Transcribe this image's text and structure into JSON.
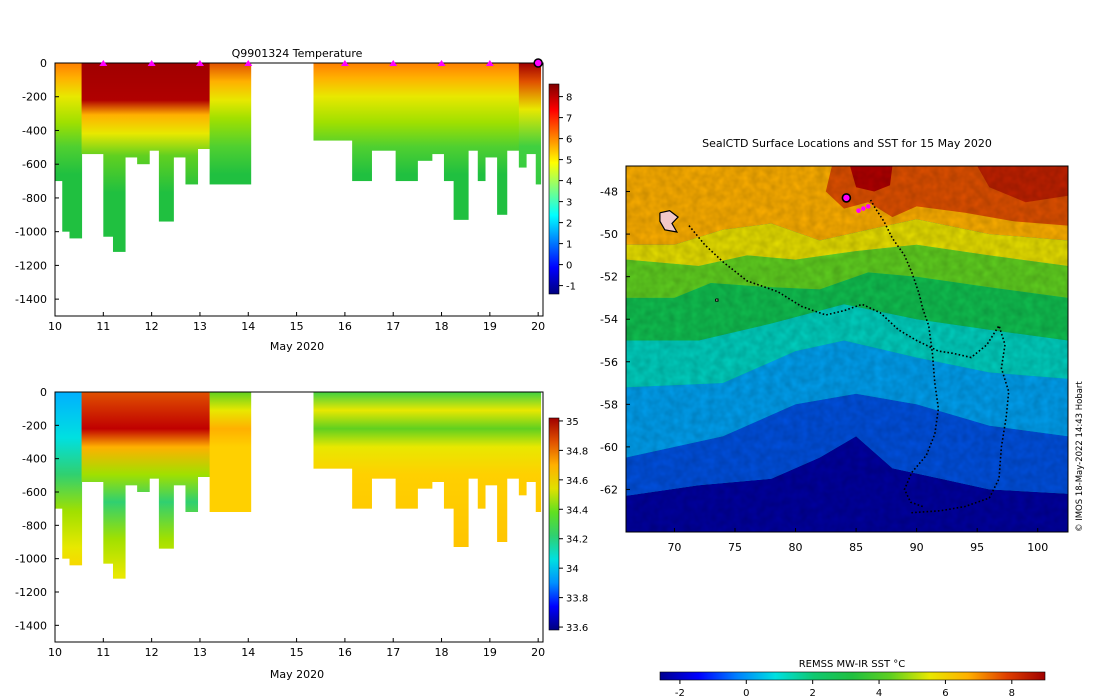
{
  "chart_data": [
    {
      "type": "heatmap",
      "id": "temperature",
      "title": "Q9901324  Temperature",
      "xlabel": "May 2020",
      "ylabel": "",
      "xlim": [
        10,
        20.1
      ],
      "ylim": [
        -1500,
        0
      ],
      "xticks": [
        10,
        11,
        12,
        13,
        14,
        15,
        16,
        17,
        18,
        19,
        20
      ],
      "yticks": [
        0,
        -200,
        -400,
        -600,
        -800,
        -1000,
        -1200,
        -1400
      ],
      "colorbar": {
        "min": -1.4,
        "max": 8.6,
        "ticks": [
          8,
          7,
          6,
          5,
          4,
          3,
          2,
          1,
          0,
          -1
        ]
      },
      "surface_markers": [
        11,
        12,
        13,
        14,
        16,
        17,
        18,
        19
      ],
      "current_marker": 20,
      "profiles": [
        {
          "x0": 10.0,
          "x1": 10.15,
          "max_depth": 700
        },
        {
          "x0": 10.15,
          "x1": 10.3,
          "max_depth": 1000
        },
        {
          "x0": 10.3,
          "x1": 10.55,
          "max_depth": 1040
        },
        {
          "x0": 10.55,
          "x1": 11.0,
          "max_depth": 540
        },
        {
          "x0": 11.0,
          "x1": 11.2,
          "max_depth": 1030
        },
        {
          "x0": 11.2,
          "x1": 11.45,
          "max_depth": 1120
        },
        {
          "x0": 11.45,
          "x1": 11.7,
          "max_depth": 560
        },
        {
          "x0": 11.7,
          "x1": 11.95,
          "max_depth": 600
        },
        {
          "x0": 11.95,
          "x1": 12.15,
          "max_depth": 520
        },
        {
          "x0": 12.15,
          "x1": 12.45,
          "max_depth": 940
        },
        {
          "x0": 12.45,
          "x1": 12.7,
          "max_depth": 560
        },
        {
          "x0": 12.7,
          "x1": 12.95,
          "max_depth": 720
        },
        {
          "x0": 12.95,
          "x1": 13.2,
          "max_depth": 510
        },
        {
          "x0": 13.2,
          "x1": 14.05,
          "max_depth": 720
        },
        {
          "x0": 15.35,
          "x1": 16.15,
          "max_depth": 460
        },
        {
          "x0": 16.15,
          "x1": 16.55,
          "max_depth": 700
        },
        {
          "x0": 16.55,
          "x1": 17.05,
          "max_depth": 520
        },
        {
          "x0": 17.05,
          "x1": 17.5,
          "max_depth": 700
        },
        {
          "x0": 17.5,
          "x1": 17.8,
          "max_depth": 580
        },
        {
          "x0": 17.8,
          "x1": 18.05,
          "max_depth": 540
        },
        {
          "x0": 18.05,
          "x1": 18.25,
          "max_depth": 700
        },
        {
          "x0": 18.25,
          "x1": 18.55,
          "max_depth": 930
        },
        {
          "x0": 18.55,
          "x1": 18.75,
          "max_depth": 520
        },
        {
          "x0": 18.75,
          "x1": 18.9,
          "max_depth": 700
        },
        {
          "x0": 18.9,
          "x1": 19.15,
          "max_depth": 560
        },
        {
          "x0": 19.15,
          "x1": 19.35,
          "max_depth": 900
        },
        {
          "x0": 19.35,
          "x1": 19.6,
          "max_depth": 520
        },
        {
          "x0": 19.6,
          "x1": 19.75,
          "max_depth": 620
        },
        {
          "x0": 19.75,
          "x1": 19.95,
          "max_depth": 540
        },
        {
          "x0": 19.95,
          "x1": 20.05,
          "max_depth": 720
        }
      ]
    },
    {
      "type": "heatmap",
      "id": "salinity",
      "title": "",
      "xlabel": "May 2020",
      "ylabel": "",
      "xlim": [
        10,
        20.1
      ],
      "ylim": [
        -1500,
        0
      ],
      "xticks": [
        10,
        11,
        12,
        13,
        14,
        15,
        16,
        17,
        18,
        19,
        20
      ],
      "yticks": [
        0,
        -200,
        -400,
        -600,
        -800,
        -1000,
        -1200,
        -1400
      ],
      "colorbar": {
        "min": 33.58,
        "max": 35.02,
        "ticks": [
          "35",
          "34.8",
          "34.6",
          "34.4",
          "34.2",
          "34",
          "33.8",
          "33.6"
        ]
      }
    },
    {
      "type": "heatmap",
      "id": "sst-map",
      "title": "SealCTD Surface Locations and SST for 15 May 2020",
      "xlim": [
        66,
        102.5
      ],
      "ylim": [
        -64,
        -46.8
      ],
      "xticks": [
        70,
        75,
        80,
        85,
        90,
        95,
        100
      ],
      "yticks": [
        -48,
        -50,
        -52,
        -54,
        -56,
        -58,
        -60,
        -62
      ],
      "colorbar": {
        "label": "REMSS MW-IR SST °C",
        "min": -2.6,
        "max": 9.0,
        "ticks": [
          -2,
          0,
          2,
          4,
          6,
          8
        ]
      },
      "track": [
        [
          90.5,
          -62.8
        ],
        [
          89.5,
          -62.6
        ],
        [
          89.0,
          -62.0
        ],
        [
          89.6,
          -61.2
        ],
        [
          90.8,
          -60.4
        ],
        [
          91.5,
          -59.4
        ],
        [
          91.8,
          -58.2
        ],
        [
          91.5,
          -57.0
        ],
        [
          91.3,
          -55.6
        ],
        [
          91.0,
          -54.3
        ],
        [
          90.5,
          -53.5
        ],
        [
          90.2,
          -52.8
        ],
        [
          89.6,
          -51.8
        ],
        [
          89.0,
          -51.0
        ],
        [
          88.0,
          -50.2
        ],
        [
          87.3,
          -49.4
        ],
        [
          86.6,
          -48.8
        ],
        [
          86.2,
          -48.4
        ]
      ],
      "track_from_kerguelen": [
        [
          71.2,
          -49.6
        ],
        [
          72.5,
          -50.5
        ],
        [
          74.0,
          -51.3
        ],
        [
          76.0,
          -52.2
        ],
        [
          78.5,
          -52.7
        ],
        [
          80.5,
          -53.4
        ],
        [
          82.5,
          -53.8
        ],
        [
          84.0,
          -53.6
        ],
        [
          85.5,
          -53.3
        ],
        [
          87.0,
          -53.7
        ],
        [
          88.5,
          -54.5
        ],
        [
          90.0,
          -55.0
        ],
        [
          91.8,
          -55.5
        ],
        [
          93.0,
          -55.6
        ],
        [
          94.5,
          -55.8
        ],
        [
          95.8,
          -55.2
        ],
        [
          96.8,
          -54.3
        ],
        [
          97.3,
          -55.2
        ],
        [
          97.0,
          -56.3
        ],
        [
          97.6,
          -57.4
        ],
        [
          97.4,
          -58.6
        ],
        [
          97.0,
          -60.0
        ],
        [
          96.8,
          -61.5
        ],
        [
          96.0,
          -62.4
        ],
        [
          94.0,
          -62.8
        ],
        [
          92.0,
          -63.0
        ],
        [
          89.5,
          -63.1
        ]
      ],
      "surface_locations": [
        [
          85.2,
          -48.9
        ],
        [
          85.6,
          -48.8
        ],
        [
          86.0,
          -48.7
        ]
      ],
      "current_location": [
        84.2,
        -48.3
      ],
      "island_main": [
        [
          68.8,
          -49.0
        ],
        [
          69.6,
          -48.9
        ],
        [
          70.3,
          -49.2
        ],
        [
          69.8,
          -49.5
        ],
        [
          70.2,
          -49.9
        ],
        [
          69.2,
          -49.8
        ],
        [
          68.8,
          -49.4
        ]
      ],
      "island_small": [
        [
          73.4,
          -53.05
        ],
        [
          73.6,
          -53.05
        ],
        [
          73.6,
          -53.15
        ],
        [
          73.4,
          -53.15
        ]
      ]
    }
  ],
  "credit": "© IMOS 18-May-2022 14:43 Hobart"
}
